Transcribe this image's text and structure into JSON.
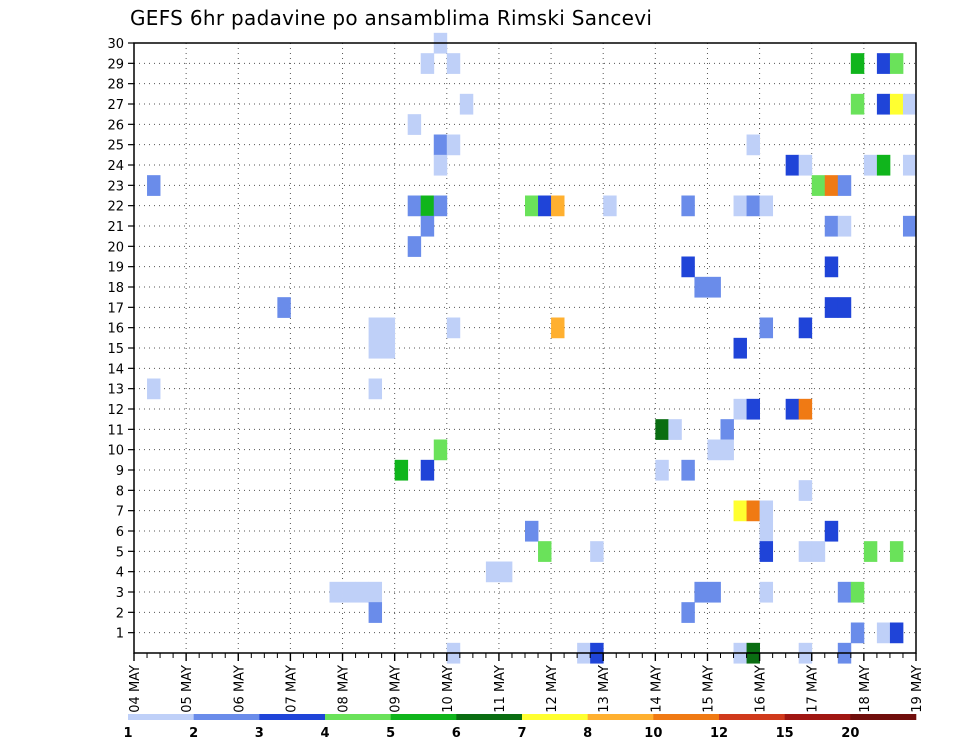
{
  "title": "GEFS 6hr padavine po ansamblima Rimski Sancevi",
  "chart_data": {
    "type": "heatmap",
    "title": "GEFS 6hr padavine po ansamblima Rimski Sancevi",
    "xlabel": "",
    "ylabel": "",
    "x_tick_labels": [
      "04 MAY",
      "05 MAY",
      "06 MAY",
      "07 MAY",
      "08 MAY",
      "09 MAY",
      "10 MAY",
      "11 MAY",
      "12 MAY",
      "13 MAY",
      "14 MAY",
      "15 MAY",
      "16 MAY",
      "17 MAY",
      "18 MAY",
      "19 MAY"
    ],
    "y_tick_labels": [
      "1",
      "2",
      "3",
      "4",
      "5",
      "6",
      "7",
      "8",
      "9",
      "10",
      "11",
      "12",
      "13",
      "14",
      "15",
      "16",
      "17",
      "18",
      "19",
      "20",
      "21",
      "22",
      "23",
      "24",
      "25",
      "26",
      "27",
      "28",
      "29",
      "30"
    ],
    "x_range_days": [
      0,
      15
    ],
    "y_range_members": [
      0,
      30
    ],
    "grid": "dotted",
    "legend": {
      "placement": "bottom",
      "tick_labels": [
        "1",
        "2",
        "3",
        "4",
        "5",
        "6",
        "7",
        "8",
        "10",
        "12",
        "15",
        "20"
      ],
      "colors": [
        "#bfd0f8",
        "#6a8cea",
        "#1f44d8",
        "#6ae25a",
        "#10b51c",
        "#0a6d12",
        "#ffff30",
        "#ffb030",
        "#f07a14",
        "#d03a1c",
        "#a01612",
        "#700e0c"
      ]
    },
    "cells": [
      {
        "member": 30,
        "day": 5.75,
        "c": 0
      },
      {
        "member": 29,
        "day": 5.5,
        "c": 0
      },
      {
        "member": 29,
        "day": 6.0,
        "c": 0
      },
      {
        "member": 29,
        "day": 13.75,
        "c": 4
      },
      {
        "member": 29,
        "day": 14.25,
        "c": 2
      },
      {
        "member": 29,
        "day": 14.5,
        "c": 3
      },
      {
        "member": 27,
        "day": 6.25,
        "c": 0
      },
      {
        "member": 27,
        "day": 13.75,
        "c": 3
      },
      {
        "member": 27,
        "day": 14.25,
        "c": 2
      },
      {
        "member": 27,
        "day": 14.5,
        "c": 6
      },
      {
        "member": 27,
        "day": 14.75,
        "c": 0
      },
      {
        "member": 26,
        "day": 5.25,
        "c": 0
      },
      {
        "member": 25,
        "day": 5.75,
        "c": 1
      },
      {
        "member": 25,
        "day": 6.0,
        "c": 0
      },
      {
        "member": 25,
        "day": 11.75,
        "c": 0
      },
      {
        "member": 24,
        "day": 5.75,
        "c": 0
      },
      {
        "member": 24,
        "day": 12.5,
        "c": 2
      },
      {
        "member": 24,
        "day": 12.75,
        "c": 0
      },
      {
        "member": 24,
        "day": 14.0,
        "c": 0
      },
      {
        "member": 24,
        "day": 14.25,
        "c": 4
      },
      {
        "member": 24,
        "day": 14.75,
        "c": 0
      },
      {
        "member": 23,
        "day": 0.25,
        "c": 1
      },
      {
        "member": 23,
        "day": 13.0,
        "c": 3
      },
      {
        "member": 23,
        "day": 13.25,
        "c": 8
      },
      {
        "member": 23,
        "day": 13.5,
        "c": 1
      },
      {
        "member": 22,
        "day": 5.25,
        "c": 1
      },
      {
        "member": 22,
        "day": 5.5,
        "c": 4
      },
      {
        "member": 22,
        "day": 5.75,
        "c": 1
      },
      {
        "member": 22,
        "day": 7.5,
        "c": 3
      },
      {
        "member": 22,
        "day": 7.75,
        "c": 2
      },
      {
        "member": 22,
        "day": 8.0,
        "c": 7
      },
      {
        "member": 22,
        "day": 9.0,
        "c": 0
      },
      {
        "member": 22,
        "day": 10.5,
        "c": 1
      },
      {
        "member": 22,
        "day": 11.5,
        "c": 0
      },
      {
        "member": 22,
        "day": 11.75,
        "c": 1
      },
      {
        "member": 22,
        "day": 12.0,
        "c": 0
      },
      {
        "member": 21,
        "day": 5.5,
        "c": 1
      },
      {
        "member": 21,
        "day": 13.25,
        "c": 1
      },
      {
        "member": 21,
        "day": 13.5,
        "c": 0
      },
      {
        "member": 21,
        "day": 14.75,
        "c": 1
      },
      {
        "member": 20,
        "day": 5.25,
        "c": 1
      },
      {
        "member": 19,
        "day": 10.5,
        "c": 2
      },
      {
        "member": 19,
        "day": 13.25,
        "c": 2
      },
      {
        "member": 18,
        "day": 10.75,
        "c": 1
      },
      {
        "member": 18,
        "day": 11.0,
        "c": 1
      },
      {
        "member": 17,
        "day": 2.75,
        "c": 1
      },
      {
        "member": 17,
        "day": 13.25,
        "c": 2
      },
      {
        "member": 17,
        "day": 13.5,
        "c": 2
      },
      {
        "member": 16,
        "day": 6.0,
        "c": 0
      },
      {
        "member": 16,
        "day": 8.0,
        "c": 7
      },
      {
        "member": 16,
        "day": 12.0,
        "c": 1
      },
      {
        "member": 16,
        "day": 12.75,
        "c": 2
      },
      {
        "member": 16,
        "day": 4.5,
        "c": 0
      },
      {
        "member": 16,
        "day": 4.75,
        "c": 0
      },
      {
        "member": 15,
        "day": 4.5,
        "c": 0
      },
      {
        "member": 15,
        "day": 4.75,
        "c": 0
      },
      {
        "member": 15,
        "day": 11.5,
        "c": 2
      },
      {
        "member": 13,
        "day": 0.25,
        "c": 0
      },
      {
        "member": 13,
        "day": 4.5,
        "c": 0
      },
      {
        "member": 12,
        "day": 11.5,
        "c": 0
      },
      {
        "member": 12,
        "day": 11.75,
        "c": 2
      },
      {
        "member": 12,
        "day": 12.5,
        "c": 2
      },
      {
        "member": 12,
        "day": 12.75,
        "c": 8
      },
      {
        "member": 11,
        "day": 10.0,
        "c": 5
      },
      {
        "member": 11,
        "day": 10.25,
        "c": 0
      },
      {
        "member": 11,
        "day": 11.25,
        "c": 1
      },
      {
        "member": 10,
        "day": 5.75,
        "c": 3
      },
      {
        "member": 10,
        "day": 11.0,
        "c": 0
      },
      {
        "member": 10,
        "day": 11.25,
        "c": 0
      },
      {
        "member": 9,
        "day": 5.0,
        "c": 4
      },
      {
        "member": 9,
        "day": 5.5,
        "c": 2
      },
      {
        "member": 9,
        "day": 10.0,
        "c": 0
      },
      {
        "member": 9,
        "day": 10.5,
        "c": 1
      },
      {
        "member": 8,
        "day": 12.75,
        "c": 0
      },
      {
        "member": 7,
        "day": 11.5,
        "c": 6
      },
      {
        "member": 7,
        "day": 11.75,
        "c": 8
      },
      {
        "member": 7,
        "day": 12.0,
        "c": 0
      },
      {
        "member": 6,
        "day": 7.5,
        "c": 1
      },
      {
        "member": 6,
        "day": 12.0,
        "c": 0
      },
      {
        "member": 6,
        "day": 13.25,
        "c": 2
      },
      {
        "member": 5,
        "day": 7.75,
        "c": 3
      },
      {
        "member": 5,
        "day": 8.75,
        "c": 0
      },
      {
        "member": 5,
        "day": 12.0,
        "c": 2
      },
      {
        "member": 5,
        "day": 12.75,
        "c": 0
      },
      {
        "member": 5,
        "day": 13.0,
        "c": 0
      },
      {
        "member": 5,
        "day": 14.0,
        "c": 3
      },
      {
        "member": 5,
        "day": 14.5,
        "c": 3
      },
      {
        "member": 4,
        "day": 6.75,
        "c": 0
      },
      {
        "member": 4,
        "day": 7.0,
        "c": 0
      },
      {
        "member": 3,
        "day": 3.75,
        "c": 0
      },
      {
        "member": 3,
        "day": 4.0,
        "c": 0
      },
      {
        "member": 3,
        "day": 4.25,
        "c": 0
      },
      {
        "member": 3,
        "day": 4.5,
        "c": 0
      },
      {
        "member": 3,
        "day": 10.75,
        "c": 1
      },
      {
        "member": 3,
        "day": 11.0,
        "c": 1
      },
      {
        "member": 3,
        "day": 12.0,
        "c": 0
      },
      {
        "member": 3,
        "day": 13.5,
        "c": 1
      },
      {
        "member": 3,
        "day": 13.75,
        "c": 3
      },
      {
        "member": 2,
        "day": 4.5,
        "c": 1
      },
      {
        "member": 2,
        "day": 10.5,
        "c": 1
      },
      {
        "member": 1,
        "day": 13.75,
        "c": 1
      },
      {
        "member": 1,
        "day": 14.25,
        "c": 0
      },
      {
        "member": 1,
        "day": 14.5,
        "c": 2
      },
      {
        "member": 0,
        "day": 6.0,
        "c": 0
      },
      {
        "member": 0,
        "day": 8.5,
        "c": 0
      },
      {
        "member": 0,
        "day": 8.75,
        "c": 2
      },
      {
        "member": 0,
        "day": 11.5,
        "c": 0
      },
      {
        "member": 0,
        "day": 11.75,
        "c": 5
      },
      {
        "member": 0,
        "day": 12.75,
        "c": 0
      },
      {
        "member": 0,
        "day": 13.5,
        "c": 1
      }
    ]
  }
}
